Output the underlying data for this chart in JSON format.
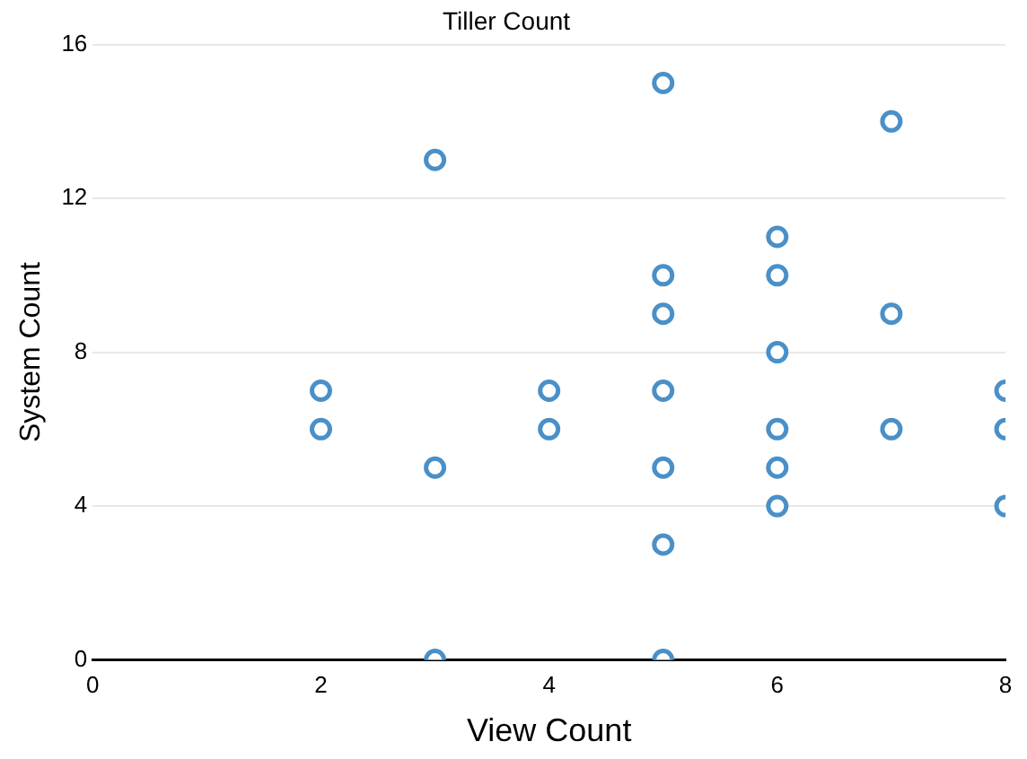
{
  "chart_data": {
    "type": "scatter",
    "title": "Tiller Count",
    "xlabel": "View Count",
    "ylabel": "System Count",
    "x": [
      2,
      2,
      3,
      3,
      3,
      4,
      4,
      5,
      5,
      5,
      5,
      5,
      5,
      5,
      6,
      6,
      6,
      6,
      6,
      6,
      7,
      7,
      7,
      8,
      8,
      8
    ],
    "values": [
      7,
      6,
      13,
      5,
      0,
      7,
      6,
      15,
      10,
      9,
      7,
      5,
      3,
      0,
      11,
      10,
      8,
      6,
      5,
      4,
      14,
      9,
      6,
      7,
      6,
      4
    ],
    "color": "#4a90c8",
    "marker": "circle",
    "xlim": [
      0,
      8
    ],
    "xticks": [
      0,
      2,
      4,
      6,
      8
    ],
    "ylim": [
      0,
      16
    ],
    "yticks": [
      0,
      4,
      8,
      12,
      16
    ],
    "grid": "y",
    "legend": false
  }
}
